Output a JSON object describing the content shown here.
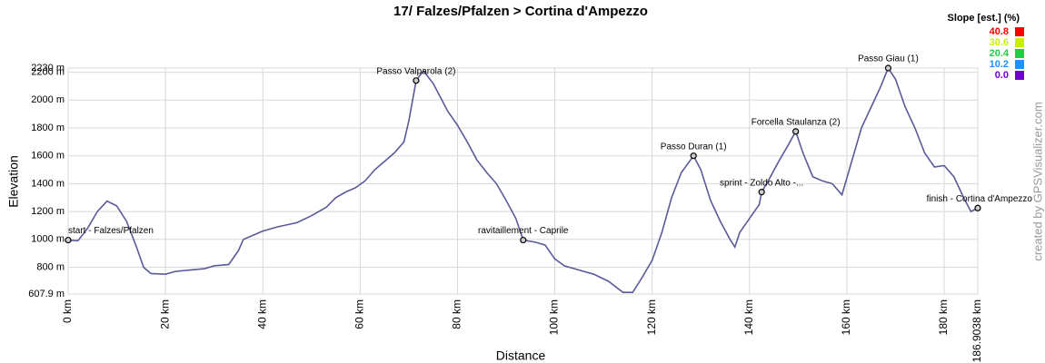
{
  "chart_data": {
    "type": "line",
    "title": "17/ Falzes/Pfalzen > Cortina d'Ampezzo",
    "x_label": "Distance",
    "y_label": "Elevation",
    "watermark": "created by GPSVisualizer.com",
    "grid": true,
    "xlim": [
      0,
      186.9038
    ],
    "ylim": [
      607.9,
      2230
    ],
    "xticks": [
      {
        "value": 0,
        "label": "0 km"
      },
      {
        "value": 20,
        "label": "20 km"
      },
      {
        "value": 40,
        "label": "40 km"
      },
      {
        "value": 60,
        "label": "60 km"
      },
      {
        "value": 80,
        "label": "80 km"
      },
      {
        "value": 100,
        "label": "100 km"
      },
      {
        "value": 120,
        "label": "120 km"
      },
      {
        "value": 140,
        "label": "140 km"
      },
      {
        "value": 160,
        "label": "160 km"
      },
      {
        "value": 180,
        "label": "180 km"
      },
      {
        "value": 186.9038,
        "label": "186.9038 km"
      }
    ],
    "yticks": [
      {
        "value": 607.9,
        "label": "607.9 m"
      },
      {
        "value": 800,
        "label": "800 m"
      },
      {
        "value": 1000,
        "label": "1000 m"
      },
      {
        "value": 1200,
        "label": "1200 m"
      },
      {
        "value": 1400,
        "label": "1400 m"
      },
      {
        "value": 1600,
        "label": "1600 m"
      },
      {
        "value": 1800,
        "label": "1800 m"
      },
      {
        "value": 2000,
        "label": "2000 m"
      },
      {
        "value": 2200,
        "label": "2200 m"
      },
      {
        "value": 2230,
        "label": "2230 m"
      }
    ],
    "legend": {
      "title": "Slope [est.] (%)",
      "items": [
        {
          "label": "40.8",
          "color": "#ff0000"
        },
        {
          "label": "30.6",
          "color": "#ccee00"
        },
        {
          "label": "20.4",
          "color": "#22cc44"
        },
        {
          "label": "10.2",
          "color": "#1e90ff"
        },
        {
          "label": "0.0",
          "color": "#7000cc"
        }
      ]
    },
    "series": [
      {
        "name": "Elevation",
        "color": "#5a5a9a",
        "x": [
          0,
          2,
          4,
          6,
          8,
          10,
          12,
          14,
          15.5,
          17,
          20,
          22,
          25,
          28,
          30,
          33,
          35,
          36,
          38,
          40,
          43,
          47,
          50,
          53,
          55,
          57,
          59,
          61,
          63,
          65,
          67,
          69,
          70,
          71.5,
          73,
          75,
          78,
          80,
          82,
          84,
          86,
          88,
          90,
          92,
          93.5,
          96,
          98,
          100,
          102,
          105,
          108,
          111,
          114,
          116,
          118,
          120,
          122,
          124,
          126,
          128.5,
          130,
          132,
          134,
          136,
          137,
          138,
          140,
          142,
          142.5,
          144,
          146,
          148,
          149.5,
          151,
          153,
          155,
          157,
          159,
          161,
          163,
          165,
          167,
          168.5,
          170,
          172,
          174,
          176,
          178,
          180,
          182,
          184,
          185.5,
          186.9038
        ],
        "values": [
          995,
          990,
          1080,
          1200,
          1275,
          1240,
          1130,
          950,
          800,
          755,
          750,
          770,
          780,
          790,
          810,
          820,
          920,
          1000,
          1030,
          1060,
          1090,
          1120,
          1170,
          1230,
          1300,
          1340,
          1370,
          1420,
          1500,
          1560,
          1620,
          1700,
          1850,
          2140,
          2210,
          2120,
          1920,
          1820,
          1700,
          1570,
          1480,
          1400,
          1280,
          1150,
          995,
          980,
          960,
          860,
          810,
          780,
          750,
          700,
          620,
          620,
          730,
          850,
          1050,
          1300,
          1480,
          1600,
          1500,
          1280,
          1130,
          1000,
          945,
          1050,
          1150,
          1250,
          1340,
          1430,
          1560,
          1680,
          1775,
          1620,
          1450,
          1420,
          1400,
          1320,
          1560,
          1800,
          1950,
          2100,
          2230,
          2150,
          1950,
          1800,
          1620,
          1520,
          1530,
          1450,
          1300,
          1200,
          1225
        ]
      }
    ],
    "annotations": [
      {
        "label": "start - Falzes/Pfalzen",
        "x": 0,
        "y": 995
      },
      {
        "label": "Passo Valparola (2)",
        "x": 71.5,
        "y": 2140
      },
      {
        "label": "ravitaillement - Caprile",
        "x": 93.5,
        "y": 995
      },
      {
        "label": "Passo Duran (1)",
        "x": 128.5,
        "y": 1600
      },
      {
        "label": "sprint - Zoldo Alto -...",
        "x": 142.5,
        "y": 1340
      },
      {
        "label": "Forcella Staulanza (2)",
        "x": 149.5,
        "y": 1775
      },
      {
        "label": "Passo Giau (1)",
        "x": 168.5,
        "y": 2230
      },
      {
        "label": "finish - Cortina d'Ampezzo",
        "x": 186.9038,
        "y": 1225
      }
    ]
  }
}
